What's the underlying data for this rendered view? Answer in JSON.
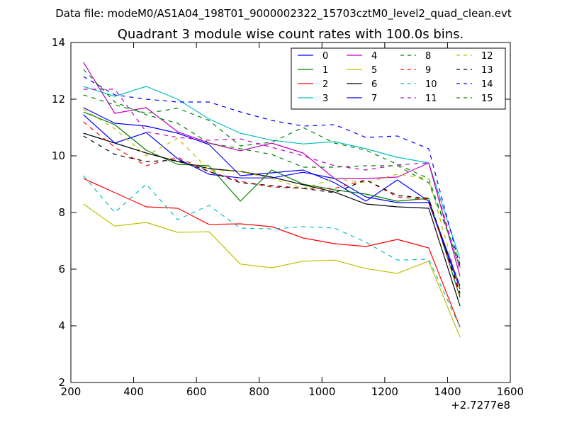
{
  "chart_data": {
    "type": "line",
    "suptitle": "Data file: modeM0/AS1A04_198T01_9000002322_15703cztM0_level2_quad_clean.evt",
    "title": "Quadrant 3 module wise count rates with 100.0s bins.",
    "xlabel": "",
    "ylabel": "",
    "x_offset_label": "+2.7277e8",
    "xlim": [
      200,
      1600
    ],
    "ylim": [
      2,
      14
    ],
    "xticks": [
      200,
      400,
      600,
      800,
      1000,
      1200,
      1400,
      1600
    ],
    "yticks": [
      2,
      4,
      6,
      8,
      10,
      12,
      14
    ],
    "xticklabels": [
      "200",
      "400",
      "600",
      "800",
      "1000",
      "1200",
      "1400",
      "1600"
    ],
    "yticklabels": [
      "2",
      "4",
      "6",
      "8",
      "10",
      "12",
      "14"
    ],
    "grid": false,
    "legend_position": "top-right",
    "x": [
      240,
      340,
      440,
      540,
      640,
      740,
      840,
      940,
      1040,
      1140,
      1240,
      1340,
      1440
    ],
    "series": [
      {
        "name": "0",
        "color": "#0000ff",
        "dash": "solid",
        "values": [
          11.7,
          11.15,
          11.05,
          10.8,
          10.4,
          9.3,
          9.4,
          9.5,
          9.05,
          8.4,
          9.15,
          8.4,
          5.4
        ]
      },
      {
        "name": "1",
        "color": "#008000",
        "dash": "solid",
        "values": [
          11.55,
          11.1,
          10.2,
          9.7,
          9.65,
          8.4,
          9.5,
          9.0,
          8.8,
          8.65,
          8.4,
          8.5,
          5.0
        ]
      },
      {
        "name": "2",
        "color": "#ff0000",
        "dash": "solid",
        "values": [
          9.2,
          8.7,
          8.2,
          8.15,
          7.58,
          7.6,
          7.5,
          7.1,
          6.9,
          6.8,
          7.05,
          6.75,
          3.95
        ]
      },
      {
        "name": "3",
        "color": "#00bfbf",
        "dash": "solid",
        "values": [
          12.45,
          12.1,
          12.45,
          12.0,
          11.3,
          10.8,
          10.55,
          10.42,
          10.5,
          10.25,
          9.95,
          9.75,
          6.35
        ]
      },
      {
        "name": "4",
        "color": "#bf00bf",
        "dash": "solid",
        "values": [
          13.3,
          11.5,
          11.7,
          10.85,
          10.45,
          10.18,
          10.45,
          10.1,
          9.2,
          9.2,
          9.25,
          9.75,
          5.75
        ]
      },
      {
        "name": "5",
        "color": "#bfbf00",
        "dash": "solid",
        "values": [
          8.3,
          7.52,
          7.65,
          7.3,
          7.32,
          6.18,
          6.05,
          6.28,
          6.32,
          6.02,
          5.85,
          6.28,
          3.6
        ]
      },
      {
        "name": "6",
        "color": "#000000",
        "dash": "solid",
        "values": [
          10.8,
          10.45,
          10.1,
          9.8,
          9.55,
          9.45,
          9.25,
          8.98,
          8.72,
          8.3,
          8.2,
          8.15,
          4.7
        ]
      },
      {
        "name": "7",
        "color": "#0000ff",
        "dash": "solid",
        "values": [
          11.45,
          10.45,
          10.82,
          9.9,
          9.35,
          9.22,
          9.22,
          9.42,
          9.2,
          8.55,
          8.35,
          8.35,
          5.3
        ]
      },
      {
        "name": "8",
        "color": "#008000",
        "dash": "dashed",
        "values": [
          12.15,
          11.8,
          11.5,
          11.68,
          11.25,
          10.35,
          10.48,
          11.0,
          10.45,
          10.2,
          9.7,
          9.2,
          6.05
        ]
      },
      {
        "name": "9",
        "color": "#ff0000",
        "dash": "dashed",
        "values": [
          11.2,
          10.3,
          9.65,
          9.95,
          9.45,
          9.1,
          8.9,
          8.85,
          8.85,
          9.15,
          8.55,
          8.45,
          5.05
        ]
      },
      {
        "name": "10",
        "color": "#00bfbf",
        "dash": "dashed",
        "values": [
          9.3,
          8.0,
          9.0,
          7.75,
          8.25,
          7.45,
          7.42,
          7.5,
          7.45,
          6.95,
          6.32,
          6.35,
          3.95
        ]
      },
      {
        "name": "11",
        "color": "#bf00bf",
        "dash": "dashed",
        "values": [
          12.35,
          12.35,
          10.85,
          10.65,
          10.55,
          10.6,
          10.3,
          10.0,
          9.65,
          9.5,
          9.68,
          9.75,
          5.95
        ]
      },
      {
        "name": "12",
        "color": "#bfbf00",
        "dash": "dashed",
        "values": [
          11.65,
          10.95,
          10.0,
          10.62,
          9.5,
          9.45,
          9.2,
          8.85,
          9.2,
          9.05,
          9.35,
          9.2,
          5.25
        ]
      },
      {
        "name": "13",
        "color": "#000000",
        "dash": "dashed",
        "values": [
          10.7,
          10.05,
          9.8,
          9.85,
          9.45,
          9.05,
          8.95,
          8.85,
          8.7,
          9.15,
          8.6,
          8.5,
          5.15
        ]
      },
      {
        "name": "14",
        "color": "#0000ff",
        "dash": "dashed",
        "values": [
          12.8,
          12.15,
          12.0,
          11.9,
          11.9,
          11.55,
          11.25,
          11.05,
          11.1,
          10.65,
          10.7,
          10.25,
          6.1
        ]
      },
      {
        "name": "15",
        "color": "#008000",
        "dash": "dashed",
        "values": [
          13.05,
          11.9,
          11.45,
          11.15,
          10.45,
          10.25,
          10.05,
          9.6,
          9.6,
          9.65,
          9.65,
          9.05,
          6.2
        ]
      }
    ]
  }
}
